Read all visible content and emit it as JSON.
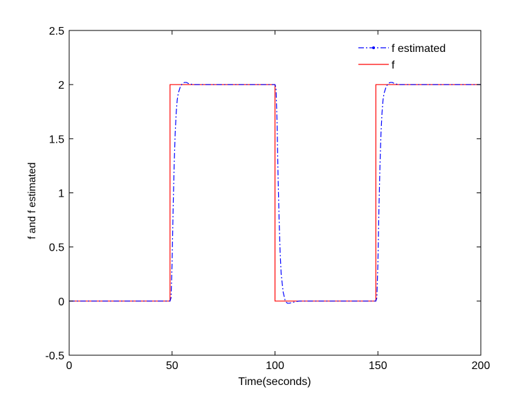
{
  "chart_data": {
    "type": "line",
    "title": "",
    "xlabel": "Time(seconds)",
    "ylabel": "f and f estimated",
    "xlim": [
      0,
      200
    ],
    "ylim": [
      -0.5,
      2.5
    ],
    "xticks": [
      0,
      50,
      100,
      150,
      200
    ],
    "yticks": [
      -0.5,
      0,
      0.5,
      1,
      1.5,
      2,
      2.5
    ],
    "xtick_labels": [
      "0",
      "50",
      "100",
      "150",
      "200"
    ],
    "ytick_labels": [
      "-0.5",
      "0",
      "0.5",
      "1",
      "1.5",
      "2",
      "2.5"
    ],
    "grid": false,
    "legend_position": "top-right",
    "series": [
      {
        "name": "f estimated",
        "color": "#0000ff",
        "style": "dash-dot with point markers",
        "x": [
          0,
          49,
          49.5,
          50,
          50.5,
          51,
          51.5,
          52,
          52.5,
          53,
          54,
          55,
          56,
          57,
          58,
          60,
          100,
          100.5,
          101,
          101.5,
          102,
          102.5,
          103,
          104,
          105,
          106,
          107,
          108,
          109,
          110,
          112,
          149,
          149.5,
          150,
          150.5,
          151,
          151.5,
          152,
          152.5,
          153,
          154,
          155,
          156,
          157,
          158,
          160,
          200
        ],
        "y": [
          0,
          0,
          0.03,
          0.35,
          0.85,
          1.25,
          1.55,
          1.74,
          1.86,
          1.92,
          1.98,
          2.01,
          2.02,
          2.02,
          2.01,
          2,
          2,
          1.97,
          1.65,
          1.15,
          0.75,
          0.45,
          0.25,
          0.08,
          0.0,
          -0.02,
          -0.02,
          -0.015,
          -0.01,
          -0.005,
          0,
          0,
          0.03,
          0.35,
          0.85,
          1.25,
          1.55,
          1.74,
          1.86,
          1.92,
          1.98,
          2.01,
          2.02,
          2.02,
          2.01,
          2,
          2
        ]
      },
      {
        "name": "f",
        "color": "#ff0000",
        "style": "solid",
        "x": [
          0,
          49,
          49,
          100,
          100,
          149,
          149,
          200
        ],
        "y": [
          0,
          0,
          2,
          2,
          0,
          0,
          2,
          2
        ]
      }
    ]
  }
}
